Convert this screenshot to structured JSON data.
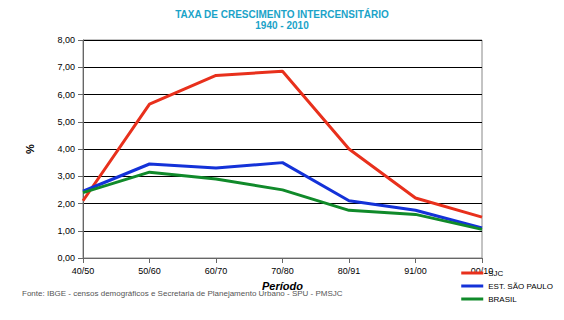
{
  "chart_data": {
    "type": "line",
    "title": "TAXA DE CRESCIMENTO INTERCENSITÁRIO",
    "subtitle": "1940 - 2010",
    "x_label": "Período",
    "y_label": "%",
    "source": "Fonte: IBGE - censos demográficos e Secretaria de Planejamento Urbano - SPU - PMSJC",
    "categories": [
      "40/50",
      "50/60",
      "60/70",
      "70/80",
      "80/91",
      "91/00",
      "00/10"
    ],
    "series": [
      {
        "name": "SJC",
        "color": "#e8301c",
        "values": [
          2.1,
          5.65,
          6.7,
          6.85,
          4.0,
          2.2,
          1.5
        ]
      },
      {
        "name": "EST. SÃO PAULO",
        "color": "#1432d8",
        "values": [
          2.45,
          3.45,
          3.3,
          3.5,
          2.1,
          1.75,
          1.1
        ]
      },
      {
        "name": "BRASIL",
        "color": "#108a2a",
        "values": [
          2.4,
          3.15,
          2.9,
          2.5,
          1.75,
          1.6,
          1.05
        ]
      }
    ],
    "ylim": [
      0,
      8
    ],
    "yticks": [
      {
        "value": 0,
        "label": "0,00"
      },
      {
        "value": 1,
        "label": "1,00"
      },
      {
        "value": 2,
        "label": "2,00"
      },
      {
        "value": 3,
        "label": "3,00"
      },
      {
        "value": 4,
        "label": "4,00"
      },
      {
        "value": 5,
        "label": "5,00"
      },
      {
        "value": 6,
        "label": "6,00"
      },
      {
        "value": 7,
        "label": "7,00"
      },
      {
        "value": 8,
        "label": "8,00"
      }
    ],
    "grid": true,
    "legend": "bottom-right"
  }
}
